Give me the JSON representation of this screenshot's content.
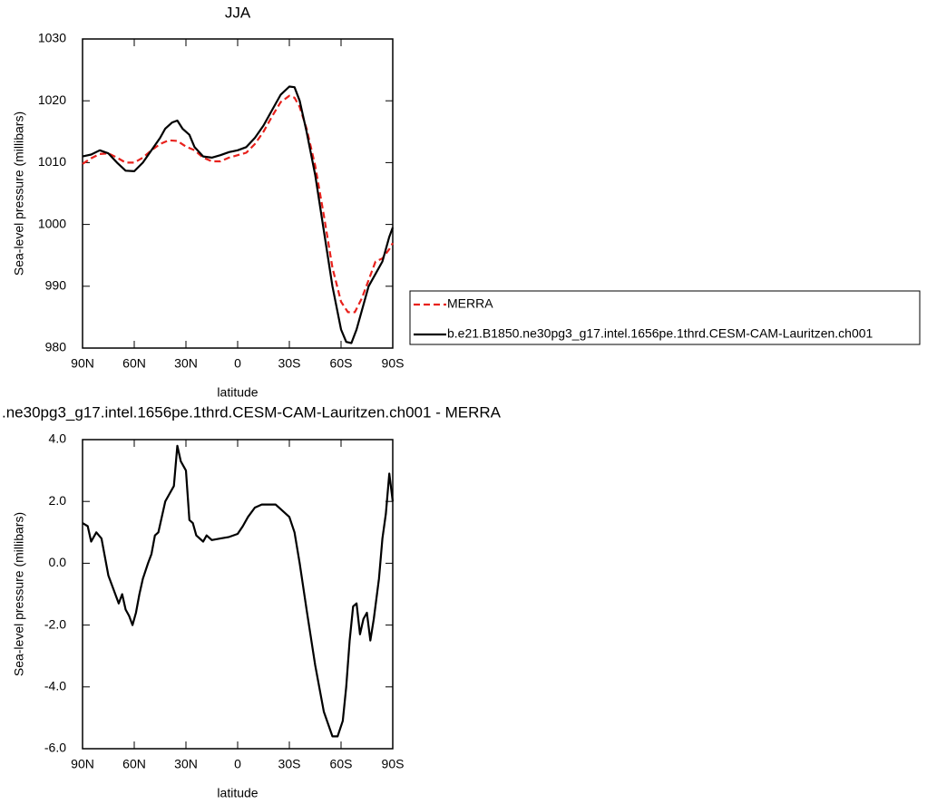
{
  "chart_data": [
    {
      "type": "line",
      "title": "JJA",
      "ylabel": "Sea-level pressure (millibars)",
      "xlabel": "latitude",
      "xlim": [
        90,
        -90
      ],
      "xticks": [
        {
          "value": 90,
          "label": "90N"
        },
        {
          "value": 60,
          "label": "60N"
        },
        {
          "value": 30,
          "label": "30N"
        },
        0,
        {
          "value": -30,
          "label": "30S"
        },
        {
          "value": -60,
          "label": "60S"
        },
        {
          "value": -90,
          "label": "90S"
        }
      ],
      "ylim": [
        980,
        1030
      ],
      "yticks": [
        980,
        990,
        1000,
        1010,
        1020,
        1030
      ],
      "legend": "right",
      "series": [
        {
          "name": "MERRA",
          "color": "#e8211c",
          "dash": true,
          "x": [
            90,
            85,
            80,
            75,
            70,
            65,
            60,
            55,
            50,
            45,
            40,
            35,
            30,
            25,
            20,
            15,
            10,
            5,
            0,
            -5,
            -10,
            -15,
            -20,
            -25,
            -30,
            -33,
            -36,
            -40,
            -45,
            -50,
            -55,
            -60,
            -64,
            -68,
            -72,
            -76,
            -80,
            -84,
            -88,
            -90
          ],
          "values": [
            1009.8,
            1010.7,
            1011.4,
            1011.5,
            1010.8,
            1010,
            1010,
            1010.8,
            1012,
            1013,
            1013.6,
            1013.5,
            1012.6,
            1012,
            1010.8,
            1010.2,
            1010.2,
            1010.8,
            1011.2,
            1011.6,
            1013,
            1015,
            1017.5,
            1019.8,
            1020.8,
            1020.5,
            1019,
            1015.5,
            1009.5,
            1001.5,
            993,
            987.5,
            985.8,
            985.8,
            988,
            991,
            994,
            994.5,
            996,
            997
          ]
        },
        {
          "name": "b.e21.B1850.ne30pg3_g17.intel.1656pe.1thrd.CESM-CAM-Lauritzen.ch001",
          "color": "#000000",
          "dash": false,
          "x": [
            90,
            85,
            80,
            75,
            70,
            65,
            60,
            55,
            50,
            45,
            42,
            38,
            35,
            32,
            28,
            25,
            20,
            15,
            10,
            5,
            0,
            -5,
            -10,
            -15,
            -20,
            -25,
            -30,
            -33,
            -36,
            -40,
            -45,
            -50,
            -55,
            -60,
            -63,
            -66,
            -69,
            -72,
            -76,
            -80,
            -84,
            -88,
            -90
          ],
          "values": [
            1011,
            1011.3,
            1012,
            1011.5,
            1010,
            1008.7,
            1008.6,
            1010,
            1012,
            1014,
            1015.5,
            1016.5,
            1016.8,
            1015.5,
            1014.5,
            1012.5,
            1011,
            1010.8,
            1011.2,
            1011.7,
            1012,
            1012.5,
            1014,
            1016,
            1018.5,
            1021,
            1022.3,
            1022.2,
            1020,
            1015,
            1008,
            999,
            990,
            983,
            981,
            980.8,
            983,
            986,
            990,
            992,
            994,
            998,
            999.5
          ]
        }
      ]
    },
    {
      "type": "line",
      "title": ".ne30pg3_g17.intel.1656pe.1thrd.CESM-CAM-Lauritzen.ch001 - MERRA",
      "ylabel": "Sea-level pressure (millibars)",
      "xlabel": "latitude",
      "xlim": [
        90,
        -90
      ],
      "xticks": [
        {
          "value": 90,
          "label": "90N"
        },
        {
          "value": 60,
          "label": "60N"
        },
        {
          "value": 30,
          "label": "30N"
        },
        0,
        {
          "value": -30,
          "label": "30S"
        },
        {
          "value": -60,
          "label": "60S"
        },
        {
          "value": -90,
          "label": "90S"
        }
      ],
      "ylim": [
        -6,
        4
      ],
      "yticks": [
        {
          "value": -6,
          "label": "-6.0"
        },
        {
          "value": -4,
          "label": "-4.0"
        },
        {
          "value": -2,
          "label": "-2.0"
        },
        {
          "value": 0,
          "label": "0.0"
        },
        {
          "value": 2,
          "label": "2.0"
        },
        {
          "value": 4,
          "label": "4.0"
        }
      ],
      "series": [
        {
          "color": "#000000",
          "dash": false,
          "x": [
            90,
            87,
            85,
            82,
            79,
            77,
            75,
            73,
            71,
            69,
            67,
            65,
            63,
            61,
            59,
            57,
            55,
            52,
            50,
            48,
            46,
            44,
            42,
            40,
            37,
            35,
            33,
            31,
            30,
            28,
            26,
            24,
            20,
            18,
            15,
            10,
            5,
            0,
            -3,
            -6,
            -10,
            -14,
            -18,
            -22,
            -26,
            -30,
            -33,
            -36,
            -40,
            -45,
            -50,
            -55,
            -58,
            -61,
            -63,
            -65,
            -67,
            -69,
            -71,
            -73,
            -75,
            -77,
            -79,
            -82,
            -84,
            -86,
            -88,
            -90
          ],
          "values": [
            1.3,
            1.2,
            0.7,
            1.0,
            0.8,
            0.2,
            -0.4,
            -0.7,
            -1.0,
            -1.3,
            -1.0,
            -1.5,
            -1.7,
            -2.0,
            -1.6,
            -1.0,
            -0.5,
            0.0,
            0.3,
            0.9,
            1.0,
            1.5,
            2.0,
            2.2,
            2.5,
            3.8,
            3.3,
            3.1,
            3.0,
            1.4,
            1.3,
            0.9,
            0.7,
            0.9,
            0.75,
            0.8,
            0.85,
            0.95,
            1.2,
            1.5,
            1.8,
            1.9,
            1.9,
            1.9,
            1.7,
            1.5,
            1.0,
            0.0,
            -1.5,
            -3.3,
            -4.8,
            -5.6,
            -5.6,
            -5.1,
            -4.0,
            -2.5,
            -1.4,
            -1.3,
            -2.3,
            -1.8,
            -1.6,
            -2.5,
            -1.8,
            -0.5,
            0.8,
            1.6,
            2.9,
            2.0
          ]
        }
      ]
    }
  ]
}
